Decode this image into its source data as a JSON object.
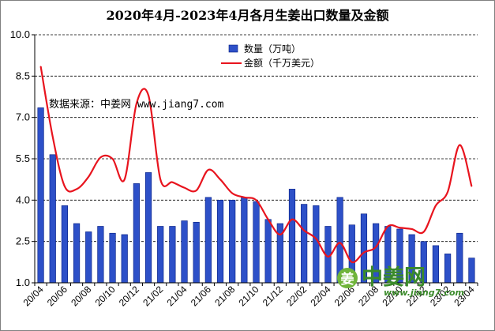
{
  "chart_data": {
    "type": "bar",
    "title": "2020年4月-2023年4月各月生姜出口数量及金额",
    "ylim": [
      1.0,
      10.0
    ],
    "y_ticks": [
      "1.0",
      "2.5",
      "4.0",
      "5.5",
      "7.0",
      "8.5",
      "10.0"
    ],
    "grid": "horizontal dashed",
    "legend_position": "top-center",
    "annotation": "数据来源：中姜网 www.jiang7.com",
    "watermark": {
      "brand_prefix": "姜",
      "brand": "中姜网",
      "url": "www.jiang7.com"
    },
    "categories": [
      "20/04",
      "20/05",
      "20/06",
      "20/07",
      "20/08",
      "20/09",
      "20/10",
      "20/11",
      "20/12",
      "21/01",
      "21/02",
      "21/03",
      "21/04",
      "21/05",
      "21/06",
      "21/07",
      "21/08",
      "21/09",
      "21/10",
      "21/11",
      "21/12",
      "22/01",
      "22/02",
      "22/03",
      "22/04",
      "22/05",
      "22/06",
      "22/07",
      "22/08",
      "22/09",
      "22/10",
      "22/11",
      "22/12",
      "23/01",
      "23/02",
      "23/03",
      "23/04"
    ],
    "x_tick_labels": [
      "20/04",
      "20/06",
      "20/08",
      "20/10",
      "20/12",
      "21/02",
      "21/04",
      "21/06",
      "21/08",
      "21/10",
      "21/12",
      "22/02",
      "22/04",
      "22/06",
      "22/08",
      "22/10",
      "22/12",
      "23/02",
      "23/04"
    ],
    "series": [
      {
        "name": "数量（万吨）",
        "type": "bar",
        "color": "#2d50c8",
        "values": [
          7.35,
          5.65,
          3.8,
          3.15,
          2.85,
          3.05,
          2.8,
          2.75,
          4.6,
          5.0,
          3.05,
          3.05,
          3.25,
          3.2,
          4.1,
          4.0,
          4.0,
          4.1,
          3.95,
          3.3,
          3.15,
          4.4,
          3.85,
          3.8,
          3.05,
          4.1,
          3.1,
          3.5,
          3.15,
          3.05,
          2.95,
          2.75,
          2.5,
          2.35,
          2.05,
          2.8,
          1.9
        ]
      },
      {
        "name": "金额（千万美元）",
        "type": "line",
        "color": "#e8141e",
        "values": [
          8.85,
          6.3,
          4.5,
          4.4,
          4.85,
          5.55,
          5.5,
          4.75,
          7.5,
          7.8,
          4.75,
          4.65,
          4.45,
          4.35,
          5.1,
          4.75,
          4.25,
          4.1,
          4.0,
          3.3,
          2.75,
          3.3,
          2.9,
          2.6,
          1.95,
          2.45,
          1.75,
          2.1,
          2.3,
          3.05,
          3.0,
          2.95,
          2.85,
          3.8,
          4.3,
          6.0,
          4.5
        ]
      }
    ]
  }
}
